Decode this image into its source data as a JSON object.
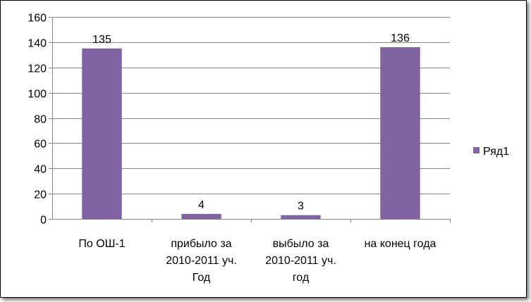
{
  "chart_data": {
    "type": "bar",
    "categories": [
      [
        "По ОШ-1"
      ],
      [
        "прибыло за",
        "2010-2011 уч.",
        "Год"
      ],
      [
        "выбыло за",
        "2010-2011 уч.",
        "год"
      ],
      [
        "на конец года"
      ]
    ],
    "series": [
      {
        "name": "Ряд1",
        "values": [
          135,
          4,
          3,
          136
        ],
        "color": "#8064A2"
      }
    ],
    "data_labels": [
      "135",
      "4",
      "3",
      "136"
    ],
    "ylim": [
      0,
      160
    ],
    "yticks": [
      0,
      20,
      40,
      60,
      80,
      100,
      120,
      140,
      160
    ],
    "grid": true,
    "legend_position": "right",
    "title": "",
    "xlabel": "",
    "ylabel": ""
  }
}
